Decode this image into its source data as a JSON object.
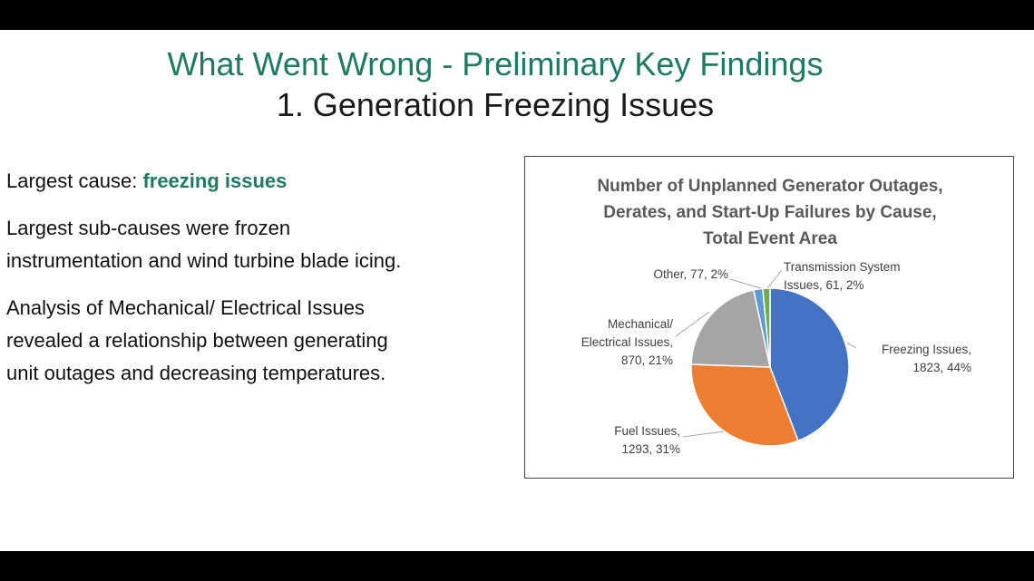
{
  "slide": {
    "title": "What Went Wrong - Preliminary Key Findings",
    "subtitle": "1. Generation Freezing Issues",
    "bullet1_prefix": "Largest cause: ",
    "bullet1_highlight": "freezing issues",
    "bullet2_line1": "Largest sub-causes were frozen",
    "bullet2_line2": "instrumentation and wind turbine blade icing.",
    "bullet3_line1": "Analysis of Mechanical/ Electrical Issues",
    "bullet3_line2": "revealed a relationship between generating",
    "bullet3_line3": "unit outages and decreasing temperatures."
  },
  "colors": {
    "accent": "#1f7a63",
    "freezing": "#4472c4",
    "fuel": "#ed7d31",
    "mechanical": "#a5a5a5",
    "other": "#5b9bd5",
    "transmission": "#70ad47"
  },
  "chart_data": {
    "type": "pie",
    "title_lines": [
      "Number of Unplanned Generator Outages,",
      "Derates, and Start-Up Failures by Cause,",
      "Total Event Area"
    ],
    "slices": [
      {
        "name": "Freezing Issues",
        "value": 1823,
        "percent": "44%",
        "label_lines": [
          "Freezing Issues,",
          "1823, 44%"
        ]
      },
      {
        "name": "Fuel Issues",
        "value": 1293,
        "percent": "31%",
        "label_lines": [
          "Fuel Issues,",
          "1293, 31%"
        ]
      },
      {
        "name": "Mechanical/ Electrical Issues",
        "value": 870,
        "percent": "21%",
        "label_lines": [
          "Mechanical/",
          "Electrical Issues,",
          "870, 21%"
        ]
      },
      {
        "name": "Other",
        "value": 77,
        "percent": "2%",
        "label_lines": [
          "Other, 77, 2%"
        ]
      },
      {
        "name": "Transmission System Issues",
        "value": 61,
        "percent": "2%",
        "label_lines": [
          "Transmission System",
          "Issues, 61, 2%"
        ]
      }
    ],
    "start": "12 o'clock, clockwise"
  }
}
